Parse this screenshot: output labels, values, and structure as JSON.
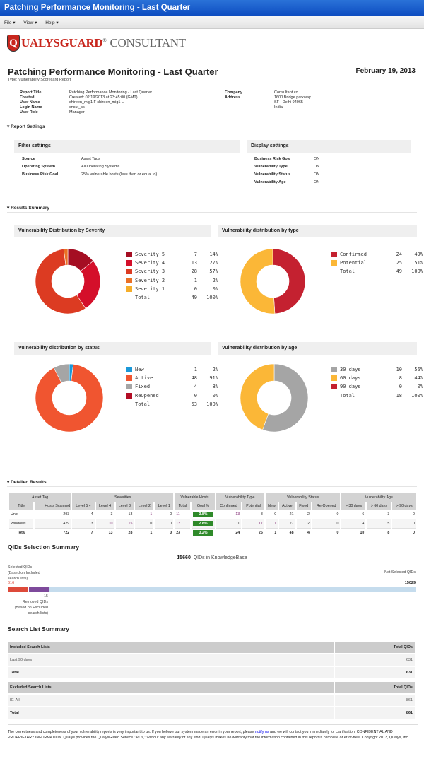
{
  "window": {
    "title": "Patching Performance Monitoring - Last Quarter"
  },
  "menu": [
    {
      "label": "File ▾"
    },
    {
      "label": "View ▾"
    },
    {
      "label": "Help ▾"
    }
  ],
  "logo": {
    "q": "Q",
    "ualys": "UALYS",
    "guard": "GUARD",
    "reg": "®",
    "consultant": "CONSULTANT"
  },
  "report": {
    "title": "Patching Performance Monitoring - Last Quarter",
    "date": "February 19, 2013",
    "type": "Type: Vulnerability Scorecard Report"
  },
  "info_left": [
    {
      "k": "Report Title",
      "v": "Patching Performance Monitoring - Last Quarter"
    },
    {
      "k": "Created",
      "v": "Created: 02/19/2013 at 23:45:00 (GMT)"
    },
    {
      "k": "User Name",
      "v": "shireen_mig1 F shireen_mig1 L"
    },
    {
      "k": "Login Name",
      "v": "cnsut_ss"
    },
    {
      "k": "User Role",
      "v": "Manager"
    }
  ],
  "info_right": [
    {
      "k": "Company",
      "v": "Consultant co"
    },
    {
      "k": "Address",
      "v": "1600 Bridge parkway"
    },
    {
      "k": "",
      "v": "SF ,  Delhi  94065"
    },
    {
      "k": "",
      "v": "India"
    }
  ],
  "sections": {
    "settings": "▾ Report Settings",
    "results": "▾ Results Summary",
    "detailed": "▾ Detailed Results"
  },
  "filter": {
    "title": "Filter settings",
    "rows": [
      {
        "k": "Source",
        "v": "Asset Tags"
      },
      {
        "k": "Operating System",
        "v": "All Operating Systems"
      },
      {
        "k": "Business Risk Goal",
        "v": "25% vulnerable hosts (less than or equal to)"
      }
    ]
  },
  "display": {
    "title": "Display settings",
    "rows": [
      {
        "k": "Business Risk Goal",
        "v": "ON"
      },
      {
        "k": "Vulnerability Type",
        "v": "ON"
      },
      {
        "k": "Vulnerability Status",
        "v": "ON"
      },
      {
        "k": "Vulnerability Age",
        "v": "ON"
      }
    ]
  },
  "chart_data": [
    {
      "type": "pie",
      "title": "Vulnerability Distribution by Severity",
      "categories": [
        "Severity 5",
        "Severity 4",
        "Severity 3",
        "Severity 2",
        "Severity 1"
      ],
      "values": [
        7,
        13,
        28,
        1,
        0
      ],
      "percents": [
        "14%",
        "27%",
        "57%",
        "2%",
        "0%"
      ],
      "colors": [
        "#a50e23",
        "#d40f2a",
        "#dc3b22",
        "#ea7025",
        "#f5ae2b"
      ],
      "total": 49,
      "total_pct": "100%",
      "total_label": "Total"
    },
    {
      "type": "pie",
      "title": "Vulnerability distribution by type",
      "categories": [
        "Confirmed",
        "Potential"
      ],
      "values": [
        24,
        25
      ],
      "percents": [
        "49%",
        "51%"
      ],
      "colors": [
        "#c42130",
        "#fbb737"
      ],
      "total": 49,
      "total_pct": "100%",
      "total_label": "Total"
    },
    {
      "type": "pie",
      "title": "Vulnerability distribution by status",
      "categories": [
        "New",
        "Active",
        "Fixed",
        "ReOpened"
      ],
      "values": [
        1,
        48,
        4,
        0
      ],
      "percents": [
        "2%",
        "91%",
        "8%",
        "0%"
      ],
      "colors": [
        "#1b98d8",
        "#f05530",
        "#a5a5a5",
        "#b30d25"
      ],
      "total": 53,
      "total_pct": "100%",
      "total_label": "Total"
    },
    {
      "type": "pie",
      "title": "Vulnerability distribution by age",
      "categories": [
        "30 days",
        "60 days",
        "90 days"
      ],
      "values": [
        10,
        8,
        0
      ],
      "percents": [
        "56%",
        "44%",
        "0%"
      ],
      "colors": [
        "#a5a5a5",
        "#fbb737",
        "#c42130"
      ],
      "total": 18,
      "total_pct": "100%",
      "total_label": "Total"
    }
  ],
  "detailed": {
    "groups": [
      "Asset Tag",
      "Severities",
      "Vulnerable Hosts",
      "Vulnerability Type",
      "Vulnerability Status",
      "Vulnerability Age"
    ],
    "columns": [
      "Title",
      "Hosts Scanned",
      "Level 5 ▾",
      "Level 4",
      "Level 3",
      "Level 2",
      "Level 1",
      "Total",
      "Goal %",
      "Confirmed",
      "Potential",
      "New",
      "Active",
      "Fixed",
      "Re-Opened",
      "> 30 days",
      "> 60 days",
      "> 90 days"
    ],
    "rows": [
      [
        "Unix",
        "293",
        "4",
        "3",
        "13",
        "1",
        "0",
        "11",
        "3.8%",
        "13",
        "8",
        "0",
        "21",
        "2",
        "0",
        "6",
        "3",
        "0"
      ],
      [
        "Windows",
        "429",
        "3",
        "10",
        "15",
        "0",
        "0",
        "12",
        "2.8%",
        "11",
        "17",
        "1",
        "27",
        "2",
        "0",
        "4",
        "5",
        "0"
      ],
      [
        "Total",
        "722",
        "7",
        "13",
        "28",
        "1",
        "0",
        "23",
        "3.2%",
        "24",
        "25",
        "1",
        "48",
        "4",
        "0",
        "10",
        "8",
        "0"
      ]
    ]
  },
  "qids": {
    "title": "QIDs Selection Summary",
    "kb_count": "15660",
    "kb_label": "QIDs in KnowledgeBase",
    "selected_label": "Selected QIDs\n(Based on Included\nsearch lists)",
    "selected": "616",
    "not_selected_label": "Not Selected QIDs",
    "not_selected": "15029",
    "removed": "15",
    "removed_label": "Removed QIDs\n(Based on Excluded\nsearch lists)",
    "colors": {
      "selected": "#dd4a3a",
      "removed": "#7e4a9b",
      "rest": "#c5dced"
    }
  },
  "search": {
    "title": "Search List Summary",
    "included": {
      "header": "Included Search Lists",
      "col": "Total QIDs",
      "rows": [
        {
          "name": "Last 90 days",
          "v": "631"
        }
      ],
      "total_label": "Total",
      "total": "631"
    },
    "excluded": {
      "header": "Excluded Search Lists",
      "col": "Total QIDs",
      "rows": [
        {
          "name": "IG-All",
          "v": "861"
        }
      ],
      "total_label": "Total",
      "total": "861"
    }
  },
  "footer": {
    "p1": "The correctness and completeness of your vulnerability reports is very important to us. If you believe our system made an error in your report, please ",
    "link": "notify us",
    "p2": " and we will contact you immediately for clarification. CONFIDENTIAL AND PROPRIETARY INFORMATION. Qualys provides the QualysGuard Service \"As is,\" without any warranty of any kind. Qualys makes no warranty that the information contained in this report is complete or error-free. Copyright 2013, Qualys, Inc."
  }
}
